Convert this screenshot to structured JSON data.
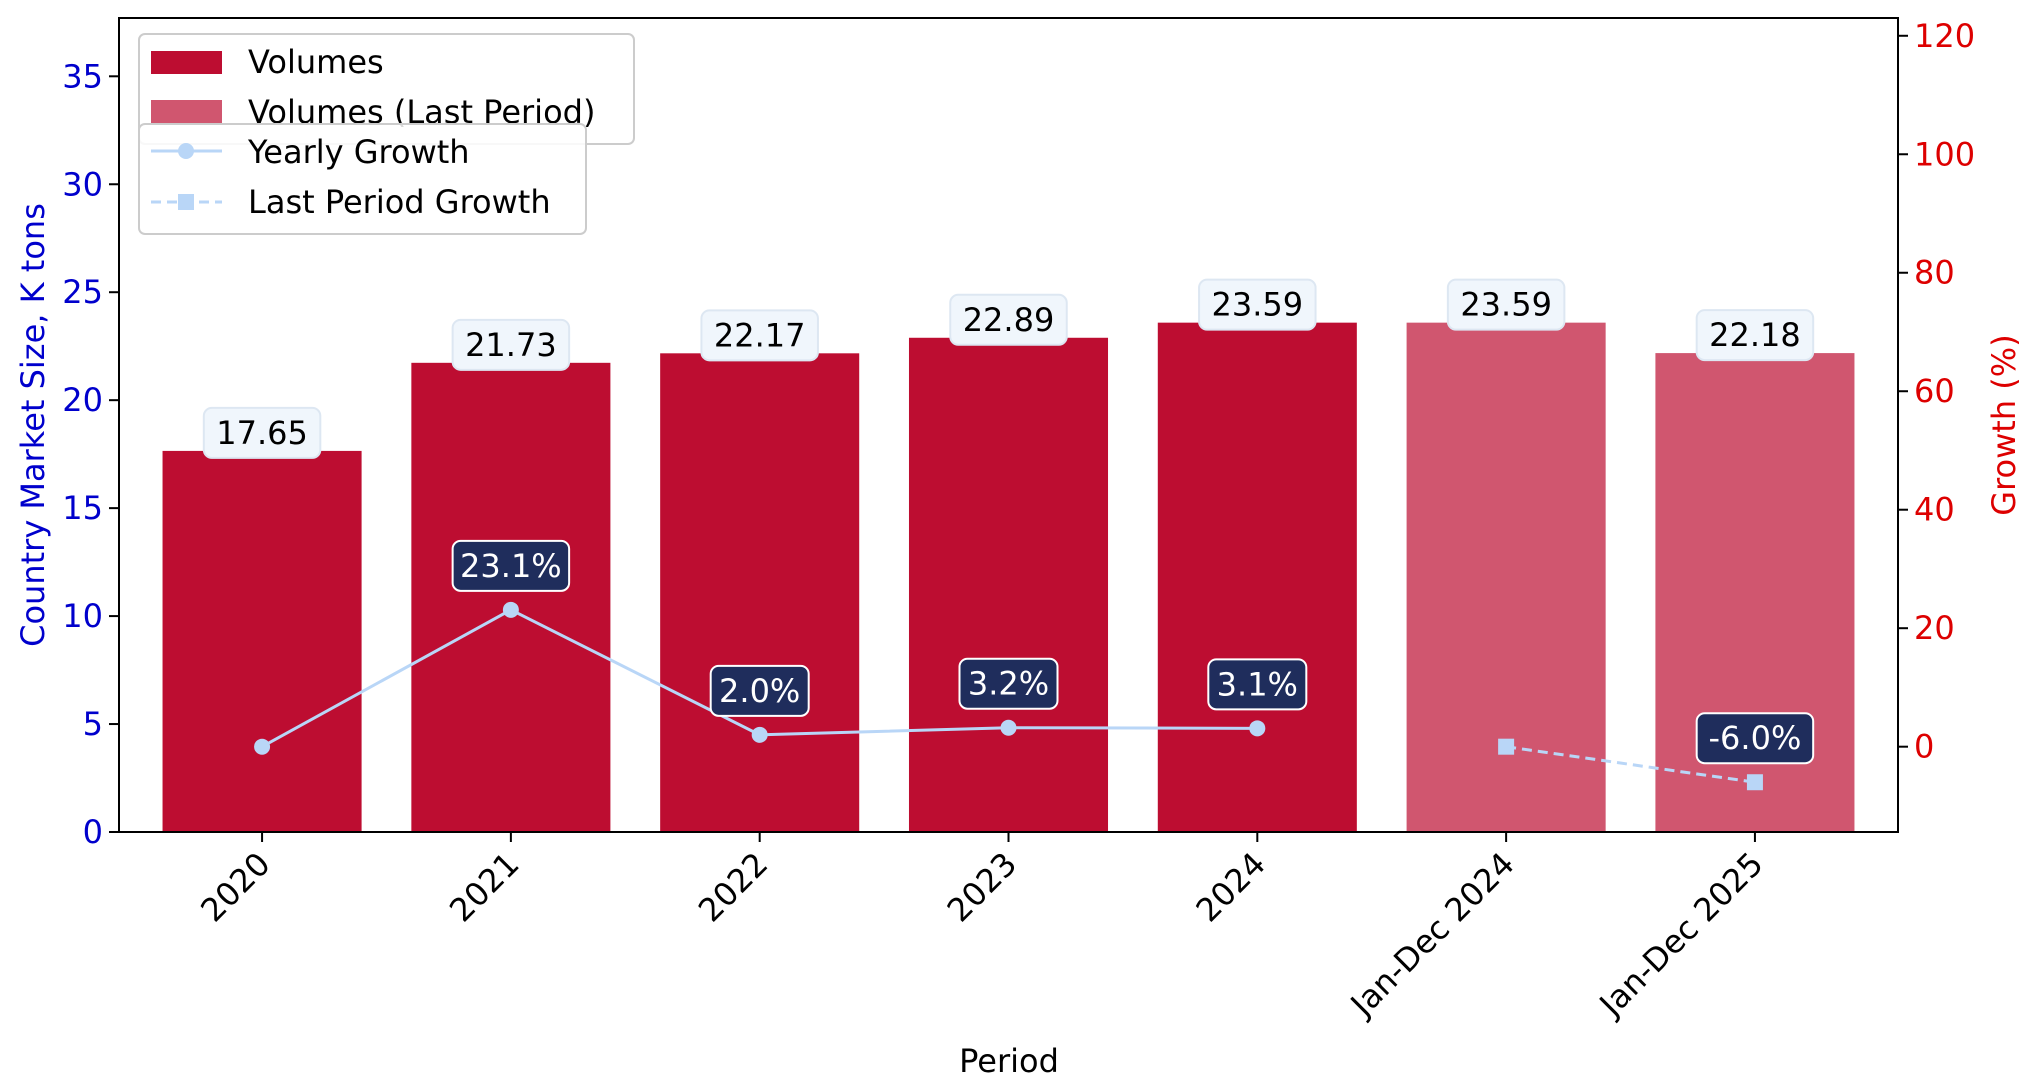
{
  "chart_data": {
    "type": "bar",
    "categories": [
      "2020",
      "2021",
      "2022",
      "2023",
      "2024",
      "Jan-Dec 2024",
      "Jan-Dec 2025"
    ],
    "xlabel": "Period",
    "ylabel": "Country Market Size, K tons",
    "y2label": "Growth (%)",
    "ylim": [
      0,
      37.7
    ],
    "y2lim": [
      -14.4,
      123.0
    ],
    "yticks": [
      0,
      5,
      10,
      15,
      20,
      25,
      30,
      35
    ],
    "y2ticks": [
      0,
      20,
      40,
      60,
      80,
      100,
      120
    ],
    "grid": false,
    "legend_placement": "top-left",
    "series": [
      {
        "name": "Volumes",
        "kind": "bar",
        "color": "#bd0d31",
        "values": [
          17.65,
          21.73,
          22.17,
          22.89,
          23.59,
          null,
          null
        ],
        "labels": [
          "17.65",
          "21.73",
          "22.17",
          "22.89",
          "23.59",
          "",
          ""
        ]
      },
      {
        "name": "Volumes (Last Period)",
        "kind": "bar",
        "color": "#d0566f",
        "values": [
          null,
          null,
          null,
          null,
          null,
          23.59,
          22.18
        ],
        "labels": [
          "",
          "",
          "",
          "",
          "",
          "23.59",
          "22.18"
        ]
      },
      {
        "name": "Yearly Growth",
        "kind": "line",
        "axis": "right",
        "color": "#b9d6f7",
        "marker": "circle",
        "values": [
          0,
          23.1,
          2.0,
          3.2,
          3.1,
          null,
          null
        ],
        "labels": [
          "",
          "23.1%",
          "2.0%",
          "3.2%",
          "3.1%",
          "",
          ""
        ]
      },
      {
        "name": "Last Period Growth",
        "kind": "line",
        "axis": "right",
        "color": "#b9d6f7",
        "marker": "square",
        "dashed": true,
        "values": [
          null,
          null,
          null,
          null,
          null,
          0,
          -6.0
        ],
        "labels": [
          "",
          "",
          "",
          "",
          "",
          "",
          "-6.0%"
        ]
      }
    ],
    "colors": {
      "left_axis": "#0000cc",
      "right_axis": "#dd0000",
      "value_label_bg": "#f0f6fc",
      "growth_label_bg": "#1f2d5c"
    }
  }
}
